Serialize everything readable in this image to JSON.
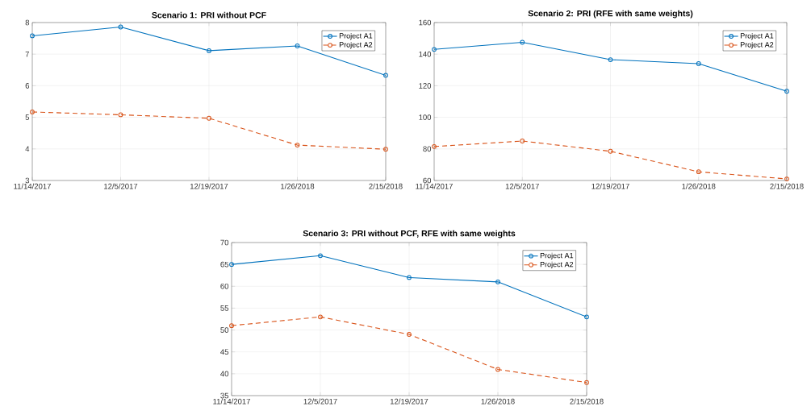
{
  "chart_data": [
    {
      "type": "line",
      "title": "Scenario 1: PRI without PCF",
      "categories": [
        "11/14/2017",
        "12/5/2017",
        "12/19/2017",
        "1/26/2018",
        "2/15/2018"
      ],
      "ylim": [
        3,
        8
      ],
      "yticks": [
        3,
        4,
        5,
        6,
        7,
        8
      ],
      "grid": true,
      "legend": "top right",
      "marker": "circle",
      "series": [
        {
          "name": "Project A1",
          "color": "#0072bd",
          "line_style": "solid",
          "values": [
            7.58,
            7.86,
            7.11,
            7.26,
            6.33
          ]
        },
        {
          "name": "Project A2",
          "color": "#d95319",
          "line_style": "dashed",
          "values": [
            5.17,
            5.08,
            4.97,
            4.12,
            3.99
          ]
        }
      ]
    },
    {
      "type": "line",
      "title": "Scenario 2: PRI (RFE with same weights)",
      "categories": [
        "11/14/2017",
        "12/5/2017",
        "12/19/2017",
        "1/26/2018",
        "2/15/2018"
      ],
      "ylim": [
        60,
        160
      ],
      "yticks": [
        60,
        80,
        100,
        120,
        140,
        160
      ],
      "grid": true,
      "legend": "top right",
      "marker": "circle",
      "series": [
        {
          "name": "Project A1",
          "color": "#0072bd",
          "line_style": "solid",
          "values": [
            143,
            147.5,
            136.5,
            134,
            116.5
          ]
        },
        {
          "name": "Project A2",
          "color": "#d95319",
          "line_style": "dashed",
          "values": [
            81.5,
            85,
            78.5,
            65.5,
            61
          ]
        }
      ]
    },
    {
      "type": "line",
      "title": "Scenario 3: PRI without PCF, RFE with same weights",
      "categories": [
        "11/14/2017",
        "12/5/2017",
        "12/19/2017",
        "1/26/2018",
        "2/15/2018"
      ],
      "ylim": [
        35,
        70
      ],
      "yticks": [
        35,
        40,
        45,
        50,
        55,
        60,
        65,
        70
      ],
      "grid": true,
      "legend": "top right",
      "marker": "circle",
      "series": [
        {
          "name": "Project A1",
          "color": "#0072bd",
          "line_style": "solid",
          "values": [
            65,
            67,
            62,
            61,
            53
          ]
        },
        {
          "name": "Project A2",
          "color": "#d95319",
          "line_style": "dashed",
          "values": [
            51,
            53,
            49,
            41,
            38
          ]
        }
      ]
    }
  ]
}
